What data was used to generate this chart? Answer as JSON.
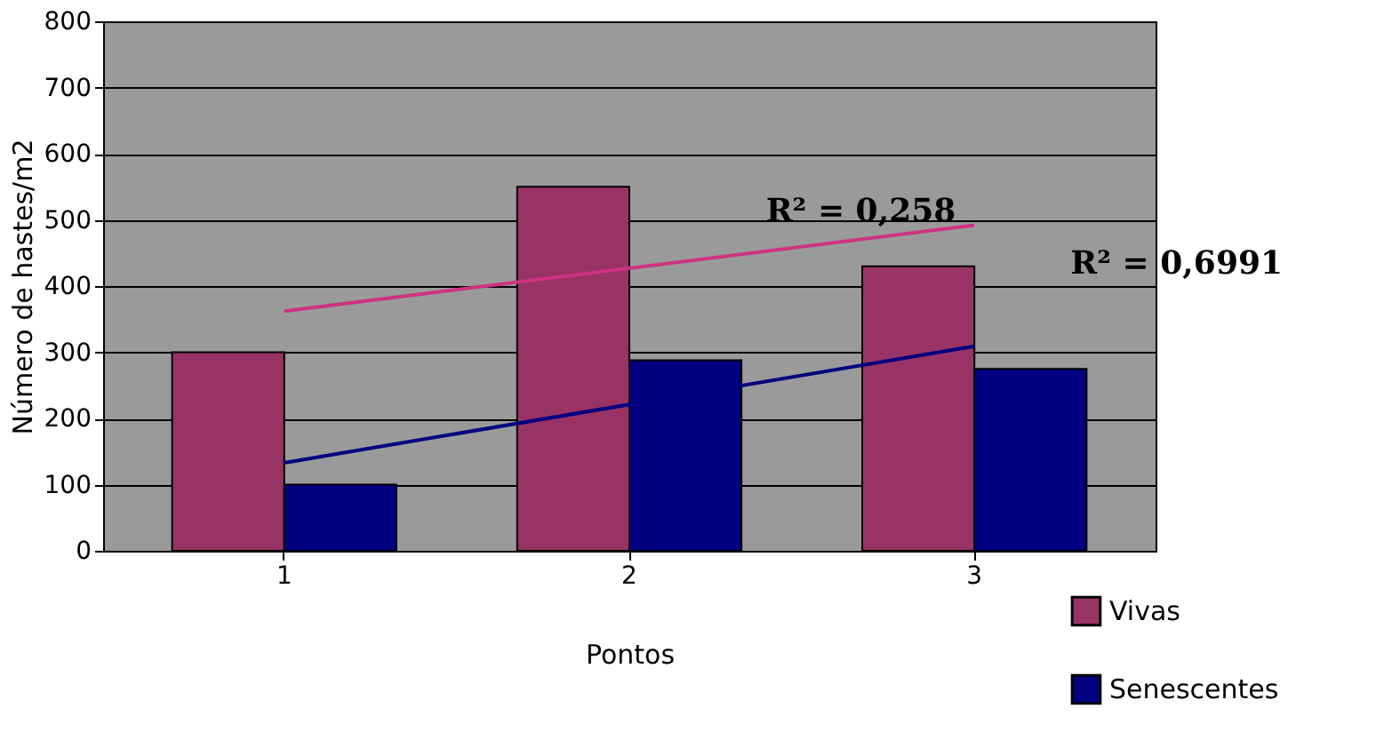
{
  "chart_data": {
    "type": "bar",
    "xlabel": "Pontos",
    "ylabel": "Número de hastes/m2",
    "categories": [
      "1",
      "2",
      "3"
    ],
    "series": [
      {
        "name": "Vivas",
        "color": "#993366",
        "values": [
          300,
          550,
          430
        ]
      },
      {
        "name": "Senescentes",
        "color": "#000080",
        "values": [
          100,
          288,
          275
        ]
      },
      {
        "type": "line",
        "color": "#cc3380",
        "x": [
          "1",
          "3"
        ],
        "values": [
          362,
          492
        ]
      },
      {
        "type": "line",
        "color": "#000080",
        "x": [
          "1",
          "3"
        ],
        "values": [
          133,
          309
        ]
      }
    ],
    "ylim": [
      0,
      800
    ],
    "yticks": [
      0,
      100,
      200,
      300,
      400,
      500,
      600,
      700,
      800
    ],
    "grid": "y",
    "legend": "bottom right",
    "annotations": [
      "R² = 0,258",
      "R² = 0,6991"
    ]
  }
}
